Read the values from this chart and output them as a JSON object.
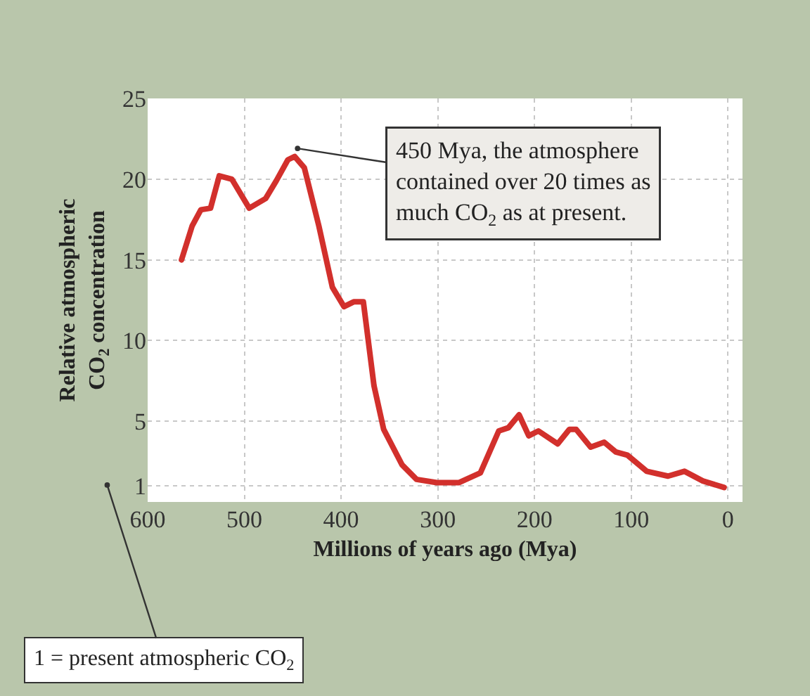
{
  "chart_data": {
    "type": "line",
    "xlabel": "Millions of years ago (Mya)",
    "ylabel": "Relative atmospheric\nCO$_{2}$ concentration",
    "x": [
      565,
      554,
      545,
      535,
      526,
      513,
      495,
      478,
      467,
      455,
      448,
      438,
      423,
      409,
      397,
      387,
      377,
      366,
      356,
      337,
      322,
      301,
      278,
      256,
      237,
      227,
      216,
      206,
      196,
      176,
      164,
      157,
      142,
      128,
      116,
      104,
      84,
      62,
      45,
      26,
      4
    ],
    "series": [
      {
        "color": "#d2302c",
        "values": [
          15.0,
          17.1,
          18.1,
          18.2,
          20.2,
          20.0,
          18.2,
          18.8,
          19.9,
          21.2,
          21.4,
          20.7,
          17.1,
          13.3,
          12.1,
          12.4,
          12.4,
          7.2,
          4.5,
          2.3,
          1.4,
          1.2,
          1.2,
          1.8,
          4.4,
          4.6,
          5.4,
          4.1,
          4.4,
          3.6,
          4.5,
          4.5,
          3.4,
          3.7,
          3.1,
          2.9,
          1.9,
          1.6,
          1.9,
          1.3,
          0.9
        ]
      }
    ],
    "xlim": [
      600,
      -15
    ],
    "ylim": [
      0,
      25
    ],
    "xticks": [
      600,
      500,
      400,
      300,
      200,
      100,
      0
    ],
    "yticks": [
      1,
      5,
      10,
      15,
      20,
      25
    ],
    "grid": true,
    "annotations": [
      {
        "text": "450 Mya, the atmosphere\ncontained over 20 times as\nmuch CO$_{2}$ as at present.",
        "x": 445,
        "y": 21.9
      },
      "1 = present atmospheric CO$_{2}$"
    ]
  }
}
